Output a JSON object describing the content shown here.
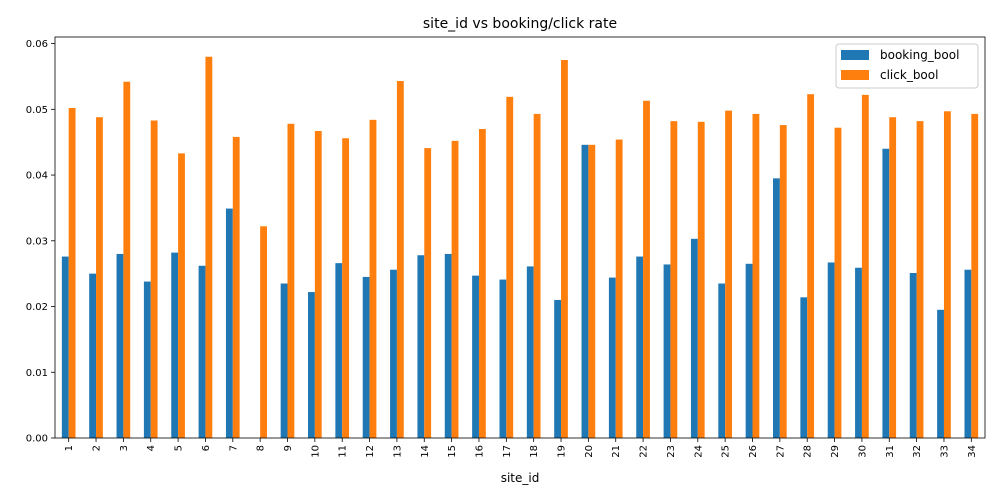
{
  "chart_data": {
    "type": "bar",
    "title": "site_id vs booking/click rate",
    "xlabel": "site_id",
    "ylabel": "",
    "ylim": [
      0,
      0.061
    ],
    "yticks": [
      0.0,
      0.01,
      0.02,
      0.03,
      0.04,
      0.05,
      0.06
    ],
    "ytick_labels": [
      "0.00",
      "0.01",
      "0.02",
      "0.03",
      "0.04",
      "0.05",
      "0.06"
    ],
    "grid": false,
    "legend_position": "top-right",
    "categories": [
      "1",
      "2",
      "3",
      "4",
      "5",
      "6",
      "7",
      "8",
      "9",
      "10",
      "11",
      "12",
      "13",
      "14",
      "15",
      "16",
      "17",
      "18",
      "19",
      "20",
      "21",
      "22",
      "23",
      "24",
      "25",
      "26",
      "27",
      "28",
      "29",
      "30",
      "31",
      "32",
      "33",
      "34"
    ],
    "series": [
      {
        "name": "booking_bool",
        "color": "#1f77b4",
        "values": [
          0.0276,
          0.025,
          0.028,
          0.0238,
          0.0282,
          0.0262,
          0.0349,
          0.0,
          0.0235,
          0.0222,
          0.0266,
          0.0245,
          0.0256,
          0.0278,
          0.028,
          0.0247,
          0.0241,
          0.0261,
          0.021,
          0.0446,
          0.0244,
          0.0276,
          0.0264,
          0.0303,
          0.0235,
          0.0265,
          0.0395,
          0.0214,
          0.0267,
          0.0259,
          0.044,
          0.0251,
          0.0195,
          0.0256
        ]
      },
      {
        "name": "click_bool",
        "color": "#ff7f0e",
        "values": [
          0.0502,
          0.0488,
          0.0542,
          0.0483,
          0.0433,
          0.058,
          0.0458,
          0.0322,
          0.0478,
          0.0467,
          0.0456,
          0.0484,
          0.0543,
          0.0441,
          0.0452,
          0.047,
          0.0519,
          0.0493,
          0.0575,
          0.0446,
          0.0454,
          0.0513,
          0.0482,
          0.0481,
          0.0498,
          0.0493,
          0.0476,
          0.0523,
          0.0472,
          0.0522,
          0.0488,
          0.0482,
          0.0497,
          0.0493
        ]
      }
    ]
  }
}
